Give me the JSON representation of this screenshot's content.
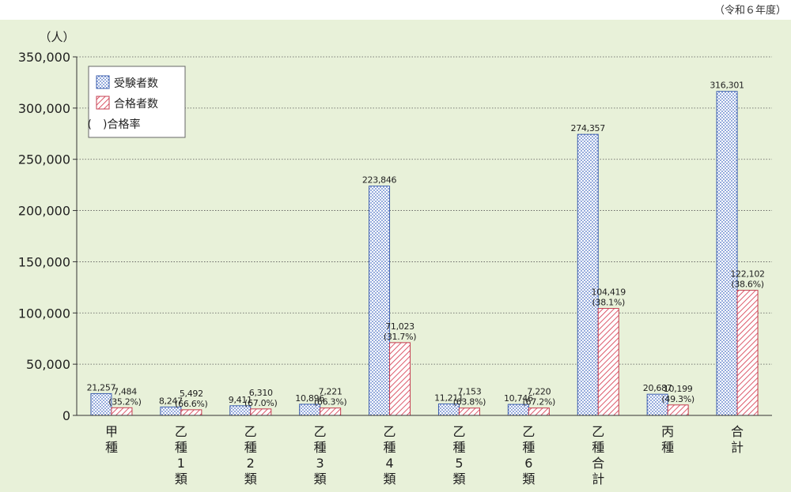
{
  "year_note": "（令和６年度）",
  "chart_data": {
    "type": "bar",
    "unit_label": "（人）",
    "categories": [
      [
        "甲",
        "種"
      ],
      [
        "乙",
        "種",
        "1",
        "類"
      ],
      [
        "乙",
        "種",
        "2",
        "類"
      ],
      [
        "乙",
        "種",
        "3",
        "類"
      ],
      [
        "乙",
        "種",
        "4",
        "類"
      ],
      [
        "乙",
        "種",
        "5",
        "類"
      ],
      [
        "乙",
        "種",
        "6",
        "類"
      ],
      [
        "乙",
        "種",
        "合",
        "計"
      ],
      [
        "丙",
        "種"
      ],
      [
        "合",
        "計"
      ]
    ],
    "series": [
      {
        "name": "受験者数",
        "pattern": "dots",
        "color": "#4a6fc4",
        "values": [
          21257,
          8247,
          9411,
          10896,
          223846,
          11211,
          10746,
          274357,
          20687,
          316301
        ],
        "labels": [
          "21,257",
          "8,247",
          "9,411",
          "10,896",
          "223,846",
          "11,211",
          "10,746",
          "274,357",
          "20,687",
          "316,301"
        ]
      },
      {
        "name": "合格者数",
        "pattern": "hatch",
        "color": "#d9475a",
        "values": [
          7484,
          5492,
          6310,
          7221,
          71023,
          7153,
          7220,
          104419,
          10199,
          122102
        ],
        "labels": [
          "7,484",
          "5,492",
          "6,310",
          "7,221",
          "71,023",
          "7,153",
          "7,220",
          "104,419",
          "10,199",
          "122,102"
        ],
        "rates": [
          "(35.2%)",
          "(66.6%)",
          "(67.0%)",
          "(66.3%)",
          "(31.7%)",
          "(63.8%)",
          "(67.2%)",
          "(38.1%)",
          "(49.3%)",
          "(38.6%)"
        ]
      }
    ],
    "legend_note": "(　)合格率",
    "legend_position": "top-left",
    "ylim": [
      0,
      350000
    ],
    "yticks": [
      0,
      50000,
      100000,
      150000,
      200000,
      250000,
      300000,
      350000
    ],
    "ytick_labels": [
      "0",
      "50,000",
      "100,000",
      "150,000",
      "200,000",
      "250,000",
      "300,000",
      "350,000"
    ],
    "grid": true
  }
}
